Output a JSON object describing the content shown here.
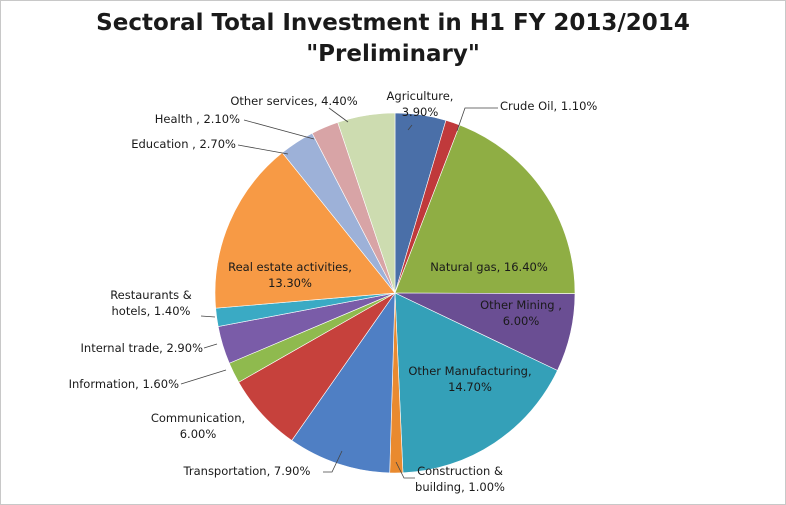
{
  "chart_data": {
    "type": "pie",
    "title_line1": "Sectoral Total Investment in H1 FY 2013/2014",
    "title_line2": "\"Preliminary\"",
    "slices": [
      {
        "label": "Agriculture,",
        "label2": "3.90%",
        "value": 3.9,
        "color": "#4a6fa8"
      },
      {
        "label": "Crude Oil, 1.10%",
        "value": 1.1,
        "color": "#c0393b"
      },
      {
        "label": "Natural gas, 16.40%",
        "value": 16.4,
        "color": "#8fae44"
      },
      {
        "label": "Other Mining ,",
        "label2": "6.00%",
        "value": 6.0,
        "color": "#6a4e93"
      },
      {
        "label": "Other Manufacturing,",
        "label2": "14.70%",
        "value": 14.7,
        "color": "#34a0b8"
      },
      {
        "label": "Construction &",
        "label2": "building, 1.00%",
        "value": 1.0,
        "color": "#e98a2f"
      },
      {
        "label": "Transportation, 7.90%",
        "value": 7.9,
        "color": "#4f7fc4"
      },
      {
        "label": "Communication,",
        "label2": "6.00%",
        "value": 6.0,
        "color": "#c6413c"
      },
      {
        "label": "Information, 1.60%",
        "value": 1.6,
        "color": "#8fba4e"
      },
      {
        "label": "Internal trade, 2.90%",
        "value": 2.9,
        "color": "#7a5ca8"
      },
      {
        "label": "Restaurants &",
        "label2": "hotels, 1.40%",
        "value": 1.4,
        "color": "#3aaac4"
      },
      {
        "label": "Real estate activities,",
        "label2": "13.30%",
        "value": 13.3,
        "color": "#f79a45"
      },
      {
        "label": "Education , 2.70%",
        "value": 2.7,
        "color": "#9db1d8"
      },
      {
        "label": "Health , 2.10%",
        "value": 2.1,
        "color": "#d8a4a6"
      },
      {
        "label": "Other services, 4.40%",
        "value": 4.4,
        "color": "#cddcb0"
      }
    ]
  }
}
